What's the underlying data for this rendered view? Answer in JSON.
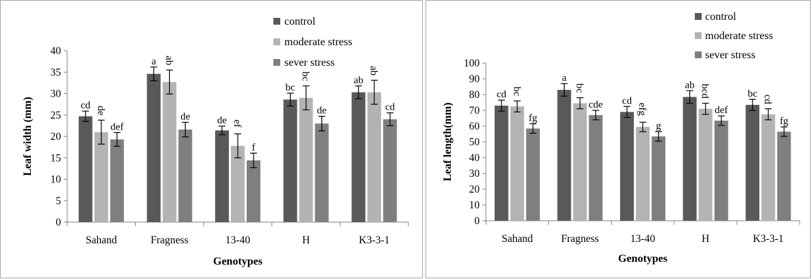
{
  "colors": {
    "control": "#595959",
    "moderate_stress": "#b3b3b3",
    "sever_stress": "#7f7f7f",
    "axis": "#808080",
    "border": "#a6a6a6",
    "text": "#000000"
  },
  "chart_data": [
    {
      "type": "bar",
      "title": "",
      "xlabel": "Genotypes",
      "ylabel": "Leaf width (mm)",
      "ylim": [
        0,
        40
      ],
      "yticks": [
        "0",
        "5",
        "10",
        "15",
        "20",
        "25",
        "30",
        "35",
        "40"
      ],
      "categories": [
        "Sahand",
        "Fragness",
        "13-40",
        "H",
        "K3-3-1"
      ],
      "legend_position": "top-right",
      "grid": false,
      "series": [
        {
          "name": "control",
          "values": [
            24.7,
            34.6,
            21.4,
            28.6,
            30.3
          ],
          "errors": [
            1.2,
            1.6,
            1.0,
            1.5,
            1.5
          ],
          "labels": [
            "cd",
            "a",
            "de",
            "bc",
            "ab"
          ]
        },
        {
          "name": "moderate stress",
          "values": [
            21.0,
            32.7,
            17.8,
            29.0,
            30.3
          ],
          "errors": [
            2.8,
            2.8,
            2.8,
            2.8,
            2.8
          ],
          "labels": [
            "de",
            "ab",
            "ef",
            "bc",
            "ab"
          ]
        },
        {
          "name": "sever stress",
          "values": [
            19.3,
            21.6,
            14.4,
            23.0,
            24.0
          ],
          "errors": [
            1.6,
            1.7,
            1.7,
            1.7,
            1.5
          ],
          "labels": [
            "def",
            "de",
            "f",
            "de",
            "cd"
          ]
        }
      ]
    },
    {
      "type": "bar",
      "title": "",
      "xlabel": "Genotypes",
      "ylabel": "Leaf length(mm)",
      "ylim": [
        0,
        100
      ],
      "yticks": [
        "0",
        "10",
        "20",
        "30",
        "40",
        "50",
        "60",
        "70",
        "80",
        "90",
        "100"
      ],
      "categories": [
        "Sahand",
        "Fragness",
        "13-40",
        "H",
        "K3-3-1"
      ],
      "legend_position": "top-right",
      "grid": false,
      "series": [
        {
          "name": "control",
          "values": [
            73,
            83,
            69,
            78.5,
            73.5
          ],
          "errors": [
            3.5,
            4,
            3.5,
            4,
            3.5
          ],
          "labels": [
            "cd",
            "a",
            "cd",
            "ab",
            "bc"
          ]
        },
        {
          "name": "moderate stress",
          "values": [
            72.5,
            74.5,
            59.5,
            71,
            67.5
          ],
          "errors": [
            3.5,
            3.5,
            3,
            3.5,
            3.5
          ],
          "labels": [
            "bc",
            "bc",
            "efg",
            "bcd",
            "cd"
          ]
        },
        {
          "name": "sever stress",
          "values": [
            58.5,
            67,
            53.5,
            63.5,
            56.5
          ],
          "errors": [
            3,
            3,
            3,
            3,
            3
          ],
          "labels": [
            "fg",
            "cde",
            "g",
            "def",
            "fg"
          ]
        }
      ]
    }
  ]
}
